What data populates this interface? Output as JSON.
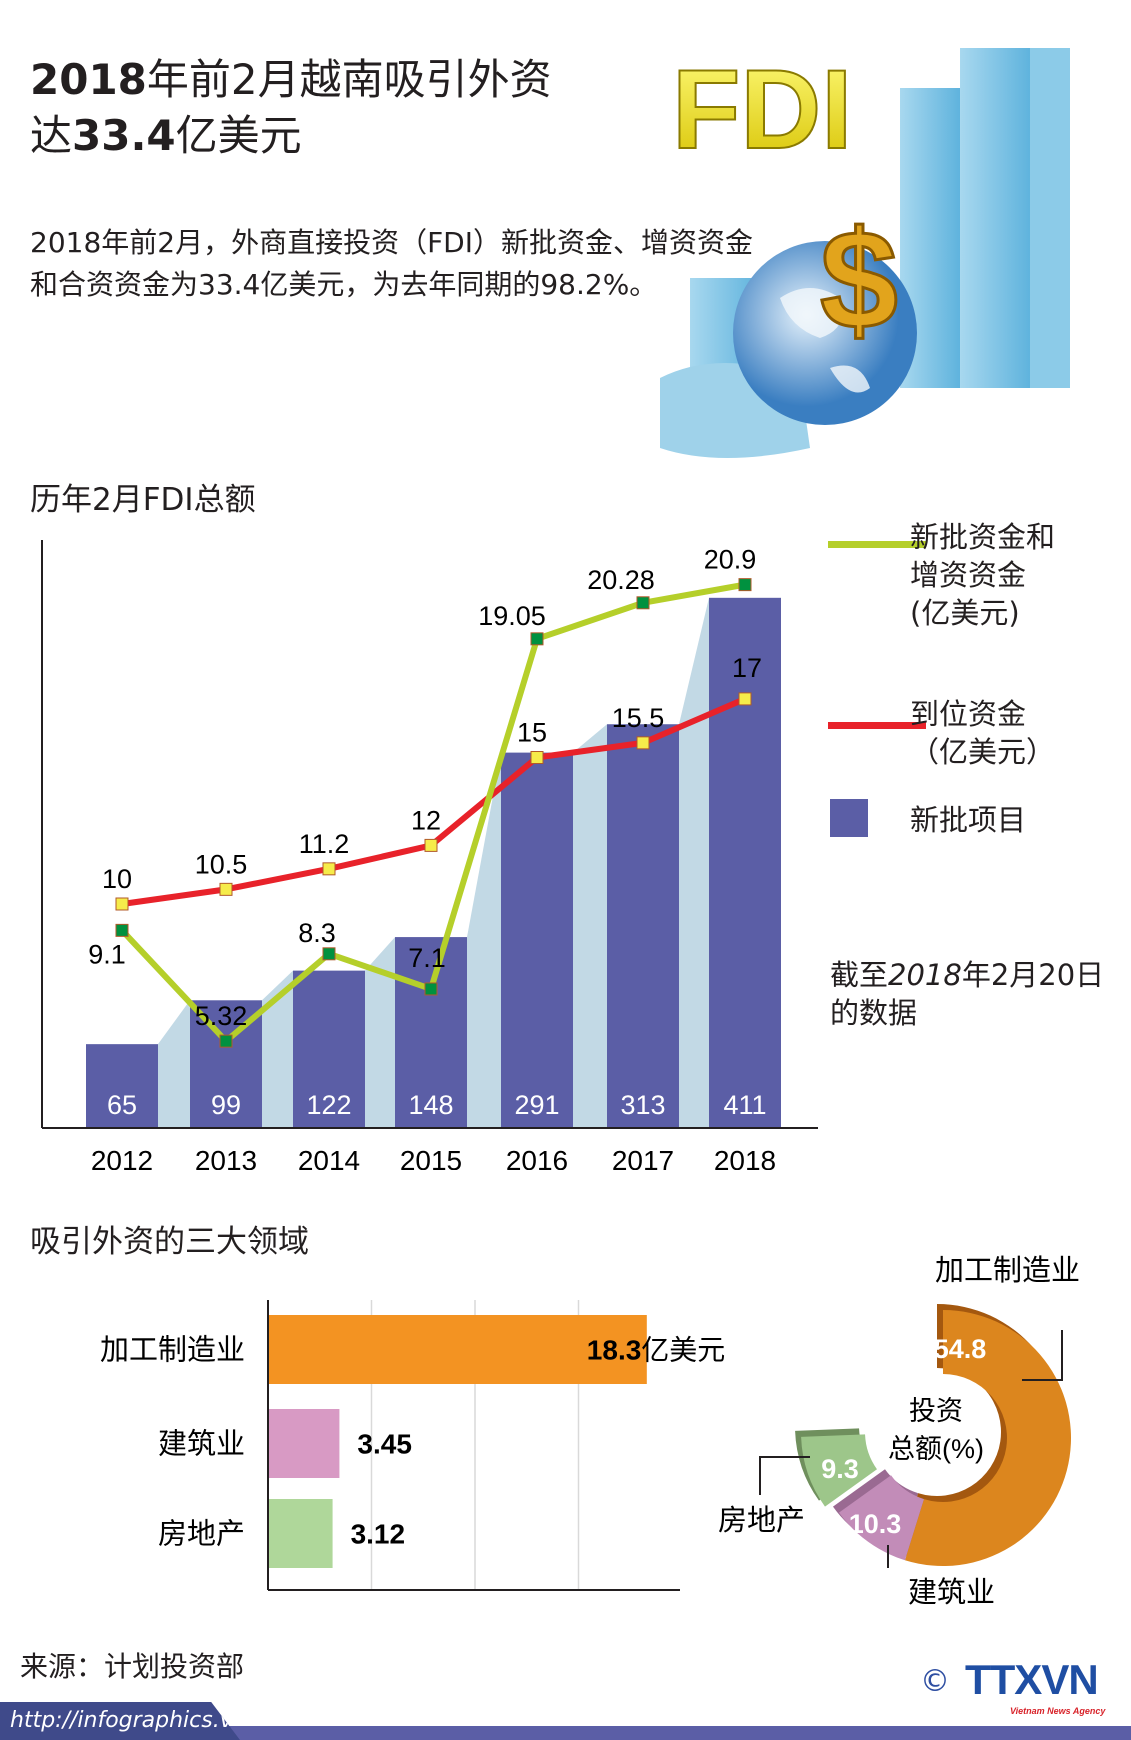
{
  "header": {
    "title_line1_bold": "2018",
    "title_line1_rest": "年前2月越南吸引外资",
    "title_line2_pre": "达",
    "title_line2_bold": "33.4",
    "title_line2_rest": "亿美元",
    "paragraph": "2018年前2月，外商直接投资（FDI）新批资金、增资资金和合资资金为33.4亿美元，为去年同期的98.2%。",
    "illustration": {
      "text": "FDI",
      "symbol": "$"
    }
  },
  "chart_data": [
    {
      "type": "bar+line",
      "title": "历年2月FDI总额",
      "categories": [
        "2012",
        "2013",
        "2014",
        "2015",
        "2016",
        "2017",
        "2018"
      ],
      "series": [
        {
          "name": "新批资金和增资资金(亿美元)",
          "kind": "line",
          "color": "#b5cf2a",
          "marker": "#00913f",
          "values": [
            9.1,
            5.32,
            8.3,
            7.1,
            19.05,
            20.28,
            20.9
          ]
        },
        {
          "name": "到位资金（亿美元）",
          "kind": "line",
          "color": "#e8222a",
          "marker": "#f6ec4a",
          "values": [
            10,
            10.5,
            11.2,
            12,
            15,
            15.5,
            17
          ]
        },
        {
          "name": "新批项目",
          "kind": "bar",
          "color": "#5b5ea6",
          "values": [
            65,
            99,
            122,
            148,
            291,
            313,
            411
          ]
        }
      ],
      "legend_lines": {
        "green": [
          "新批资金和",
          "增资资金",
          "(亿美元)"
        ],
        "red": [
          "到位资金",
          "（亿美元）"
        ],
        "bar": [
          "新批项目"
        ]
      },
      "legend_placement": "right",
      "note_pre": "截至",
      "note_year": "2018",
      "note_rest": "年2月20日",
      "note_line2": "的数据",
      "shade_color": "#c2d9e5"
    },
    {
      "type": "bar",
      "orientation": "horizontal",
      "title": "吸引外资的三大领域",
      "categories": [
        "加工制造业",
        "建筑业",
        "房地产"
      ],
      "values": [
        18.3,
        3.45,
        3.12
      ],
      "value_labels": [
        "18.3",
        "3.45",
        "3.12"
      ],
      "unit": "亿美元",
      "colors": [
        "#f39322",
        "#d89ac4",
        "#afd79a"
      ],
      "xlim": [
        0,
        20
      ],
      "grid": true
    },
    {
      "type": "pie",
      "style": "donut",
      "center_label": [
        "投资",
        "总额(%)"
      ],
      "categories": [
        "加工制造业",
        "建筑业",
        "房地产"
      ],
      "values": [
        54.8,
        10.3,
        9.3
      ],
      "value_labels": [
        "54.8",
        "10.3",
        "9.3"
      ],
      "colors": [
        "#dc861e",
        "#c28cb8",
        "#9dc68a"
      ]
    }
  ],
  "footer": {
    "source": "来源：计划投资部",
    "url": "http://infographics.vn",
    "copyright": "©",
    "logo": "TTXVN",
    "logo_sub": "Vietnam News Agency"
  }
}
